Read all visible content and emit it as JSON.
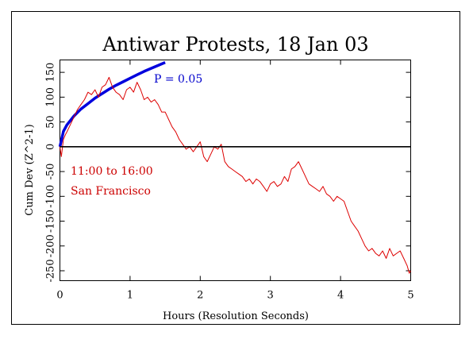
{
  "chart_data": {
    "type": "line",
    "title": "Antiwar Protests, 18 Jan 03",
    "xlabel": "Hours (Resolution Seconds)",
    "ylabel": "Cum Dev (Z^2-1)",
    "xlim": [
      0,
      5
    ],
    "ylim": [
      -270,
      175
    ],
    "xticks": [
      0,
      1,
      2,
      3,
      4,
      5
    ],
    "yticks": [
      -250,
      -200,
      -150,
      -100,
      -50,
      0,
      50,
      100,
      150
    ],
    "grid": false,
    "annotations": [
      {
        "text": "P = 0.05",
        "color": "#0000cc"
      },
      {
        "text": "11:00 to 16:00",
        "color": "#cc0000"
      },
      {
        "text": "San Francisco",
        "color": "#cc0000"
      }
    ],
    "series": [
      {
        "color": "#0000dd",
        "style": "p05-envelope",
        "x": [
          0,
          0.05,
          0.1,
          0.2,
          0.3,
          0.4,
          0.5,
          0.6,
          0.7,
          0.8,
          0.9,
          1.0,
          1.1,
          1.2,
          1.3,
          1.4,
          1.5
        ],
        "y": [
          0,
          31,
          44,
          62,
          76,
          87,
          98,
          107,
          116,
          124,
          131,
          138,
          145,
          152,
          158,
          164,
          170
        ]
      },
      {
        "color": "#dd0000",
        "style": "cumulative-deviation",
        "x": [
          0,
          0.02,
          0.05,
          0.08,
          0.1,
          0.15,
          0.2,
          0.25,
          0.3,
          0.35,
          0.4,
          0.45,
          0.5,
          0.55,
          0.6,
          0.65,
          0.7,
          0.75,
          0.8,
          0.85,
          0.9,
          0.95,
          1.0,
          1.05,
          1.1,
          1.15,
          1.2,
          1.25,
          1.3,
          1.35,
          1.4,
          1.45,
          1.5,
          1.55,
          1.6,
          1.65,
          1.7,
          1.75,
          1.8,
          1.85,
          1.9,
          1.95,
          2.0,
          2.05,
          2.1,
          2.15,
          2.2,
          2.25,
          2.3,
          2.35,
          2.4,
          2.45,
          2.5,
          2.55,
          2.6,
          2.65,
          2.7,
          2.75,
          2.8,
          2.85,
          2.9,
          2.95,
          3.0,
          3.05,
          3.1,
          3.15,
          3.2,
          3.25,
          3.3,
          3.35,
          3.4,
          3.45,
          3.5,
          3.55,
          3.6,
          3.65,
          3.7,
          3.75,
          3.8,
          3.85,
          3.9,
          3.95,
          4.0,
          4.05,
          4.1,
          4.15,
          4.2,
          4.25,
          4.3,
          4.35,
          4.4,
          4.45,
          4.5,
          4.55,
          4.6,
          4.65,
          4.7,
          4.75,
          4.8,
          4.85,
          4.9,
          4.95,
          4.98,
          5.0
        ],
        "y": [
          0,
          -20,
          15,
          25,
          30,
          45,
          60,
          75,
          85,
          95,
          110,
          105,
          115,
          100,
          120,
          125,
          140,
          120,
          110,
          105,
          95,
          115,
          120,
          110,
          130,
          115,
          95,
          100,
          90,
          95,
          85,
          70,
          70,
          55,
          40,
          30,
          15,
          5,
          -5,
          0,
          -10,
          0,
          10,
          -20,
          -30,
          -15,
          0,
          -5,
          5,
          -30,
          -40,
          -45,
          -50,
          -55,
          -60,
          -70,
          -65,
          -75,
          -65,
          -70,
          -80,
          -90,
          -75,
          -70,
          -80,
          -75,
          -60,
          -70,
          -45,
          -40,
          -30,
          -45,
          -60,
          -75,
          -80,
          -85,
          -90,
          -80,
          -95,
          -100,
          -110,
          -100,
          -105,
          -110,
          -130,
          -150,
          -160,
          -170,
          -185,
          -200,
          -210,
          -205,
          -215,
          -220,
          -210,
          -225,
          -205,
          -220,
          -215,
          -210,
          -225,
          -240,
          -255,
          -250
        ]
      },
      {
        "color": "#000000",
        "style": "zero-line",
        "x": [
          0,
          5
        ],
        "y": [
          0,
          0
        ]
      }
    ]
  }
}
